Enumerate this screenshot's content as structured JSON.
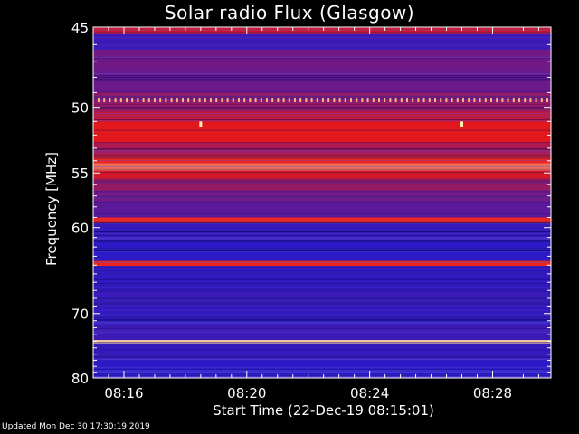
{
  "chart_data": {
    "type": "heatmap",
    "title": "Solar radio Flux (Glasgow)",
    "xlabel": "Start Time (22-Dec-19 08:15:01)",
    "ylabel": "Frequency [MHz]",
    "x_ticks": [
      "08:16",
      "08:20",
      "08:24",
      "08:28"
    ],
    "x_tick_minutes": [
      1,
      5,
      9,
      13
    ],
    "x_range_minutes": [
      0.0,
      14.9
    ],
    "y_ticks": [
      45,
      50,
      55,
      60,
      70,
      80
    ],
    "y_range_mhz": [
      45,
      80
    ],
    "y_scale": "reciprocal",
    "colormap": "red-temperature",
    "colors": {
      "background": "#000000",
      "base_blue": "#1a1ad6",
      "hot_red": "#e81818",
      "hottest_yellow": "#fff4b0"
    },
    "bands_mhz": [
      {
        "from": 45.0,
        "to": 45.4,
        "level": 0.65
      },
      {
        "from": 45.4,
        "to": 46.3,
        "level": 0.12
      },
      {
        "from": 46.3,
        "to": 47.5,
        "level": 0.3
      },
      {
        "from": 47.5,
        "to": 49.0,
        "level": 0.28
      },
      {
        "from": 49.0,
        "to": 49.7,
        "level": 0.4
      },
      {
        "from": 49.7,
        "to": 50.3,
        "level": 0.42
      },
      {
        "from": 50.3,
        "to": 51.0,
        "level": 0.58
      },
      {
        "from": 51.0,
        "to": 52.6,
        "level": 0.68
      },
      {
        "from": 52.6,
        "to": 53.5,
        "level": 0.5
      },
      {
        "from": 53.5,
        "to": 54.2,
        "level": 0.72
      },
      {
        "from": 54.2,
        "to": 54.8,
        "level": 0.82
      },
      {
        "from": 54.8,
        "to": 55.5,
        "level": 0.64
      },
      {
        "from": 55.5,
        "to": 56.5,
        "level": 0.42
      },
      {
        "from": 56.5,
        "to": 57.5,
        "level": 0.3
      },
      {
        "from": 57.5,
        "to": 59.0,
        "level": 0.22
      },
      {
        "from": 59.0,
        "to": 59.6,
        "level": 0.72
      },
      {
        "from": 59.6,
        "to": 61.5,
        "level": 0.1
      },
      {
        "from": 61.5,
        "to": 63.5,
        "level": 0.06
      },
      {
        "from": 63.5,
        "to": 64.1,
        "level": 0.72
      },
      {
        "from": 64.1,
        "to": 67.0,
        "level": 0.08
      },
      {
        "from": 67.0,
        "to": 69.0,
        "level": 0.11
      },
      {
        "from": 69.0,
        "to": 71.5,
        "level": 0.09
      },
      {
        "from": 71.5,
        "to": 73.8,
        "level": 0.12
      },
      {
        "from": 73.8,
        "to": 74.3,
        "level": 0.95
      },
      {
        "from": 74.3,
        "to": 77.0,
        "level": 0.1
      },
      {
        "from": 77.0,
        "to": 80.0,
        "level": 0.06
      }
    ],
    "spike_line": {
      "freq_mhz": 49.5,
      "level": 0.92
    },
    "bright_spots": [
      {
        "minute": 3.5,
        "freq_mhz": 51.2
      },
      {
        "minute": 12.0,
        "freq_mhz": 51.2
      }
    ]
  },
  "footer": {
    "updated": "Updated Mon Dec 30 17:30:19 2019"
  }
}
